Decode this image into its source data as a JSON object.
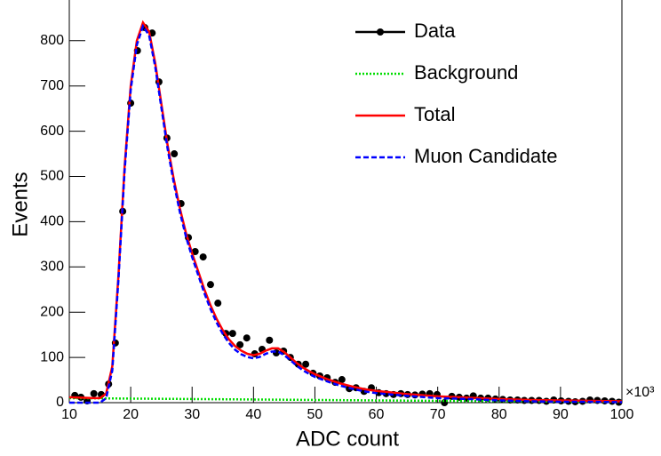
{
  "chart_data": {
    "type": "line",
    "x_label": "ADC count",
    "y_label": "Events",
    "x_multiplier": "×10³",
    "xlim": [
      10,
      100
    ],
    "ylim": [
      0,
      890
    ],
    "xticks": [
      10,
      20,
      30,
      40,
      50,
      60,
      70,
      80,
      90,
      100
    ],
    "yticks": [
      0,
      100,
      200,
      300,
      400,
      500,
      600,
      700,
      800
    ],
    "legend": "top-right",
    "series": [
      {
        "name": "Data",
        "color": "#000000",
        "style": "points",
        "x": [
          10.9,
          11.9,
          12.9,
          14,
          15.2,
          16.4,
          17.5,
          18.7,
          20,
          21.1,
          22.3,
          23.5,
          24.6,
          25.9,
          27.1,
          28.2,
          29.4,
          30.5,
          31.8,
          33,
          34.2,
          35.5,
          36.6,
          37.8,
          38.9,
          40.2,
          41.4,
          42.6,
          43.7,
          44.9,
          46,
          47.3,
          48.5,
          49.7,
          50.8,
          52,
          53.3,
          54.4,
          55.6,
          56.7,
          58,
          59.2,
          60.4,
          61.6,
          62.8,
          64,
          65.1,
          66.3,
          67.5,
          68.7,
          69.9,
          71.1,
          72.3,
          73.5,
          74.7,
          75.8,
          77,
          78.2,
          79.4,
          80.6,
          81.8,
          83,
          84.1,
          85.3,
          86.5,
          87.7,
          88.9,
          90.1,
          91.3,
          92.4,
          93.6,
          94.8,
          96,
          97.2,
          98.4,
          99.5
        ],
        "values": [
          16,
          12,
          4,
          20,
          18,
          41,
          132,
          423,
          662,
          778,
          829,
          817,
          709,
          585,
          550,
          440,
          365,
          334,
          322,
          261,
          220,
          153,
          153,
          128,
          143,
          108,
          118,
          138,
          110,
          114,
          100,
          85,
          85,
          65,
          59,
          55,
          45,
          51,
          31,
          33,
          25,
          33,
          22,
          20,
          18,
          20,
          18,
          17,
          19,
          20,
          18,
          0,
          14,
          12,
          10,
          15,
          10,
          10,
          8,
          7,
          6,
          6,
          5,
          5,
          5,
          3,
          6,
          4,
          3,
          2,
          3,
          6,
          5,
          4,
          3,
          1
        ]
      },
      {
        "name": "Background",
        "color": "#00dd00",
        "style": "dotted",
        "x": [
          10,
          40,
          70,
          100
        ],
        "values": [
          10,
          7,
          4,
          2
        ]
      },
      {
        "name": "Total",
        "color": "#ff0000",
        "style": "solid",
        "x": [
          10,
          12,
          14,
          15,
          16,
          17,
          18,
          19,
          20,
          21,
          22,
          23,
          24,
          25,
          26,
          27,
          28,
          29,
          30,
          31,
          32,
          33,
          34,
          35,
          36,
          37,
          38,
          39,
          40,
          41,
          42,
          43,
          44,
          45,
          46,
          47,
          48,
          49,
          50,
          52,
          54,
          56,
          58,
          60,
          65,
          70,
          75,
          80,
          85,
          90,
          95,
          100
        ],
        "values": [
          12,
          11,
          10,
          10,
          20,
          80,
          280,
          520,
          700,
          800,
          840,
          820,
          750,
          660,
          570,
          495,
          430,
          375,
          330,
          290,
          250,
          215,
          185,
          160,
          140,
          125,
          115,
          108,
          105,
          108,
          115,
          120,
          120,
          112,
          100,
          88,
          78,
          70,
          63,
          52,
          43,
          36,
          30,
          26,
          19,
          14,
          11,
          8,
          6,
          5,
          4,
          3
        ]
      },
      {
        "name": "Muon Candidate",
        "color": "#0000ff",
        "style": "dashed",
        "x": [
          10,
          14,
          15,
          16,
          17,
          18,
          19,
          20,
          21,
          22,
          23,
          24,
          25,
          26,
          27,
          28,
          29,
          30,
          31,
          32,
          33,
          34,
          35,
          36,
          37,
          38,
          39,
          40,
          41,
          42,
          43,
          44,
          45,
          46,
          47,
          48,
          49,
          50,
          52,
          54,
          56,
          58,
          60,
          65,
          70,
          75,
          80,
          85,
          90,
          95,
          100
        ],
        "values": [
          0,
          0,
          0,
          10,
          71,
          271,
          511,
          691,
          791,
          832,
          812,
          742,
          652,
          562,
          487,
          422,
          367,
          322,
          282,
          242,
          207,
          177,
          152,
          132,
          117,
          107,
          101,
          98,
          101,
          108,
          113,
          113,
          105,
          94,
          82,
          72,
          64,
          57,
          47,
          38,
          31,
          25,
          21,
          15,
          10,
          8,
          5,
          3,
          2,
          2,
          1
        ]
      }
    ]
  }
}
